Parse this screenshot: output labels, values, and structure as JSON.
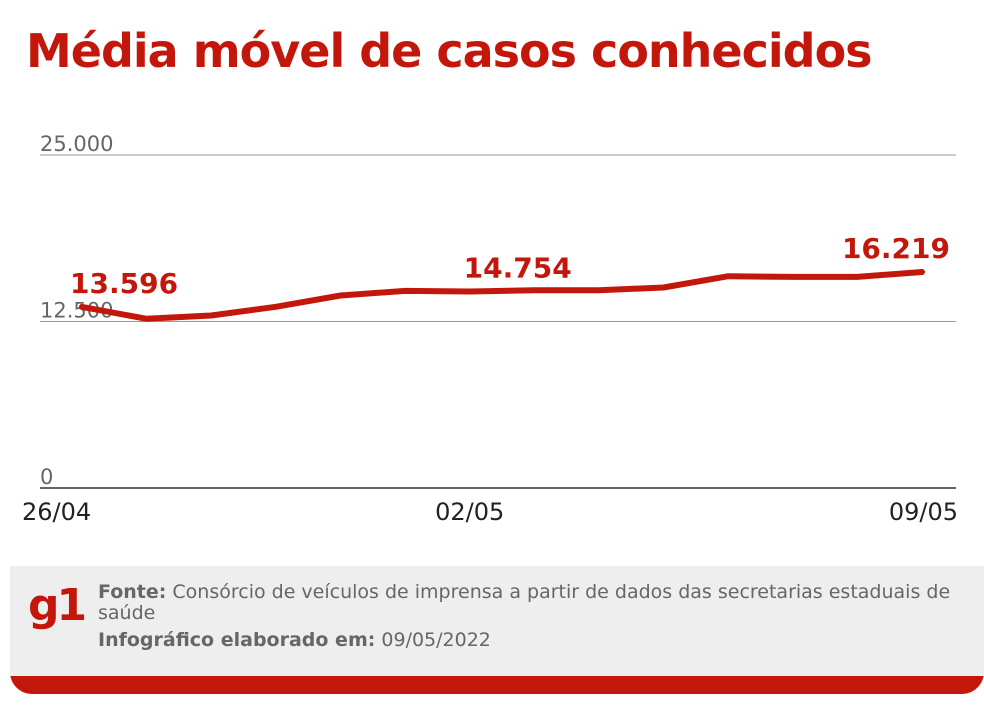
{
  "title": "Média móvel de casos conhecidos",
  "chart_data": {
    "type": "line",
    "x": [
      "26/04",
      "27/04",
      "28/04",
      "29/04",
      "30/04",
      "01/05",
      "02/05",
      "03/05",
      "04/05",
      "05/05",
      "06/05",
      "07/05",
      "08/05",
      "09/05"
    ],
    "series": [
      {
        "values": [
          13596,
          12700,
          12950,
          13600,
          14450,
          14800,
          14754,
          14850,
          14850,
          15050,
          15900,
          15850,
          15850,
          16219
        ]
      }
    ],
    "yticks": [
      "25.000",
      "12.500",
      "0"
    ],
    "ytick_values": [
      25000,
      12500,
      0
    ],
    "ylim": [
      0,
      25000
    ],
    "xticks": [
      {
        "label": "26/04",
        "index": 0
      },
      {
        "label": "02/05",
        "index": 6
      },
      {
        "label": "09/05",
        "index": 13
      }
    ],
    "annotations": [
      {
        "index": 0,
        "text": "13.596"
      },
      {
        "index": 6,
        "text": "14.754"
      },
      {
        "index": 13,
        "text": "16.219"
      }
    ],
    "line_color": "#c4170c",
    "grid": true
  },
  "footer": {
    "logo": "g1",
    "source_label": "Fonte:",
    "source_text": "Consórcio de veículos de imprensa a partir de dados das secretarias estaduais de saúde",
    "made_label": "Infográfico elaborado em:",
    "made_date": "09/05/2022"
  }
}
